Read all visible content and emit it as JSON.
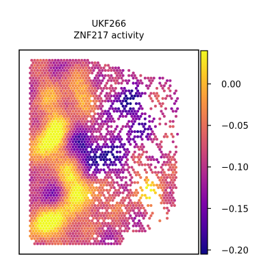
{
  "chart_data": {
    "type": "heatmap",
    "title_line1": "UKF266",
    "title_line2": "ZNF217 activity",
    "xlabel": "",
    "ylabel": "",
    "colormap": "plasma",
    "value_range": [
      -0.205,
      0.04
    ],
    "colorbar_ticks": [
      {
        "value": 0.0,
        "label": "0.00"
      },
      {
        "value": -0.05,
        "label": "−0.05"
      },
      {
        "value": -0.1,
        "label": "−0.10"
      },
      {
        "value": -0.15,
        "label": "−0.15"
      },
      {
        "value": -0.2,
        "label": "−0.20"
      }
    ],
    "grid": false,
    "hotspots": [
      {
        "x": 0.12,
        "y": 0.47,
        "value": 0.035
      },
      {
        "x": 0.08,
        "y": 0.88,
        "value": 0.04
      },
      {
        "x": 0.22,
        "y": 0.85,
        "value": 0.005
      },
      {
        "x": 0.18,
        "y": 0.36,
        "value": 0.01
      },
      {
        "x": 0.33,
        "y": 0.18,
        "value": -0.01
      },
      {
        "x": 0.25,
        "y": 0.62,
        "value": 0.0
      },
      {
        "x": 0.42,
        "y": 0.72,
        "value": -0.03
      },
      {
        "x": 0.28,
        "y": 0.72,
        "value": -0.02
      },
      {
        "x": 0.78,
        "y": 0.72,
        "value": 0.01
      },
      {
        "x": 0.44,
        "y": 0.52,
        "value": -0.18
      },
      {
        "x": 0.3,
        "y": 0.46,
        "value": -0.16
      },
      {
        "x": 0.62,
        "y": 0.22,
        "value": -0.19
      },
      {
        "x": 0.14,
        "y": 0.72,
        "value": -0.17
      },
      {
        "x": 0.55,
        "y": 0.55,
        "value": -0.15
      },
      {
        "x": 0.68,
        "y": 0.38,
        "value": -0.16
      },
      {
        "x": 0.12,
        "y": 0.18,
        "value": -0.04
      },
      {
        "x": 0.5,
        "y": 0.82,
        "value": -0.07
      },
      {
        "x": 0.66,
        "y": 0.62,
        "value": -0.06
      }
    ]
  }
}
